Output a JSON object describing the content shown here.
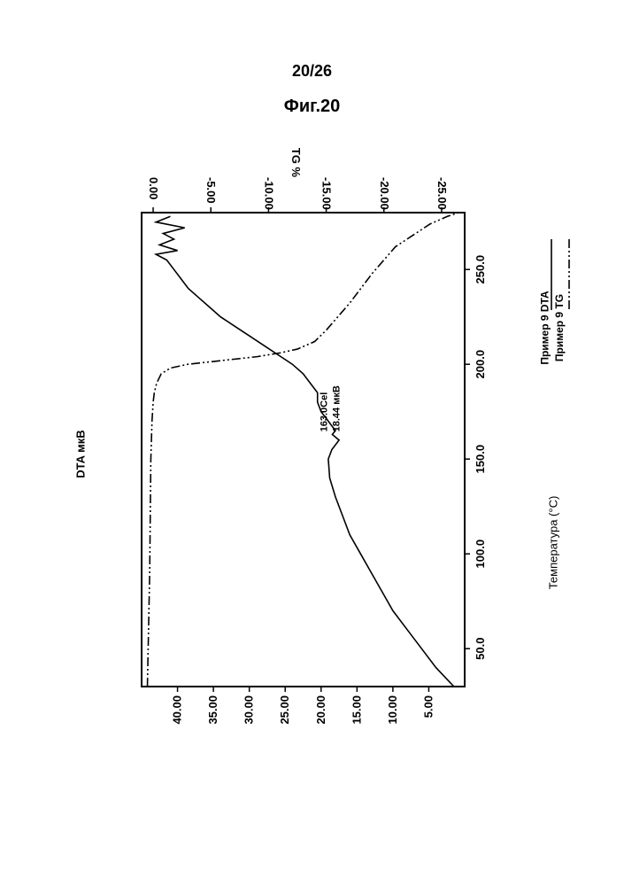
{
  "page_header": "20/26",
  "figure_title": "Фиг.20",
  "chart": {
    "type": "line-dual-axis-rotated",
    "background_color": "#ffffff",
    "frame_color": "#000000",
    "frame_width": 2,
    "tick_font_size": 13,
    "tick_font_weight": "bold",
    "x_axis": {
      "label": "Температура (°C)",
      "min": 30,
      "max": 280,
      "ticks": [
        50.0,
        100.0,
        150.0,
        200.0,
        250.0
      ],
      "tick_labels": [
        "50.0",
        "100.0",
        "150.0",
        "200.0",
        "250.0"
      ]
    },
    "dta_axis": {
      "label": "DTA мкВ",
      "min": 0,
      "max": 45,
      "ticks": [
        5.0,
        10.0,
        15.0,
        20.0,
        25.0,
        30.0,
        35.0,
        40.0
      ],
      "tick_labels": [
        "5.00",
        "10.00",
        "15.00",
        "20.00",
        "25.00",
        "30.00",
        "35.00",
        "40.00"
      ]
    },
    "tg_axis": {
      "label": "TG %",
      "min": -27,
      "max": 1,
      "ticks": [
        0.0,
        -5.0,
        -10.0,
        -15.0,
        -20.0,
        -25.0
      ],
      "tick_labels": [
        "0.00",
        "-5.00",
        "-10.00",
        "-15.00",
        "-20.00",
        "-25.00"
      ]
    },
    "series": {
      "dta": {
        "name": "Пример 9 DTA",
        "style": "solid",
        "color": "#000000",
        "width": 1.6,
        "points": [
          [
            30,
            1.5
          ],
          [
            40,
            4
          ],
          [
            50,
            6
          ],
          [
            60,
            8
          ],
          [
            70,
            10
          ],
          [
            80,
            11.5
          ],
          [
            90,
            13
          ],
          [
            100,
            14.5
          ],
          [
            110,
            16
          ],
          [
            120,
            17
          ],
          [
            130,
            18
          ],
          [
            140,
            18.8
          ],
          [
            150,
            19
          ],
          [
            155,
            18.5
          ],
          [
            160,
            17.5
          ],
          [
            163,
            18.44
          ],
          [
            165,
            18
          ],
          [
            170,
            19
          ],
          [
            175,
            20
          ],
          [
            180,
            20.5
          ],
          [
            185,
            20.5
          ],
          [
            190,
            21.5
          ],
          [
            195,
            22.5
          ],
          [
            200,
            24
          ],
          [
            205,
            26
          ],
          [
            210,
            28
          ],
          [
            215,
            30
          ],
          [
            220,
            32
          ],
          [
            225,
            34
          ],
          [
            230,
            35.5
          ],
          [
            235,
            37
          ],
          [
            240,
            38.5
          ],
          [
            245,
            39.5
          ],
          [
            250,
            40.5
          ],
          [
            255,
            41.5
          ],
          [
            258,
            43
          ],
          [
            260,
            40
          ],
          [
            263,
            42.5
          ],
          [
            266,
            40.5
          ],
          [
            269,
            42
          ],
          [
            272,
            39
          ],
          [
            275,
            43
          ],
          [
            278,
            41
          ]
        ]
      },
      "tg": {
        "name": "Пример 9 TG",
        "style": "dash-dot-dot",
        "color": "#000000",
        "width": 1.6,
        "points": [
          [
            30,
            0.5
          ],
          [
            60,
            0.4
          ],
          [
            90,
            0.3
          ],
          [
            120,
            0.25
          ],
          [
            150,
            0.2
          ],
          [
            170,
            0.1
          ],
          [
            180,
            0.0
          ],
          [
            185,
            -0.1
          ],
          [
            190,
            -0.3
          ],
          [
            195,
            -0.7
          ],
          [
            198,
            -1.5
          ],
          [
            200,
            -3
          ],
          [
            202,
            -6
          ],
          [
            204,
            -9
          ],
          [
            206,
            -11
          ],
          [
            208,
            -12.5
          ],
          [
            212,
            -14
          ],
          [
            218,
            -15
          ],
          [
            225,
            -16
          ],
          [
            232,
            -17
          ],
          [
            240,
            -18
          ],
          [
            248,
            -19
          ],
          [
            255,
            -20
          ],
          [
            262,
            -21
          ],
          [
            268,
            -22.5
          ],
          [
            274,
            -24
          ],
          [
            278,
            -25.5
          ],
          [
            280,
            -26.5
          ]
        ]
      }
    },
    "annotation": {
      "line1": "163.0Cel",
      "line2": "18.44 мкВ",
      "temp": 163.0,
      "dta": 18.44
    },
    "legend": {
      "items": [
        {
          "label": "Пример 9 DTA",
          "style": "solid"
        },
        {
          "label": "Пример 9 TG",
          "style": "dash-dot-dot"
        }
      ]
    }
  }
}
